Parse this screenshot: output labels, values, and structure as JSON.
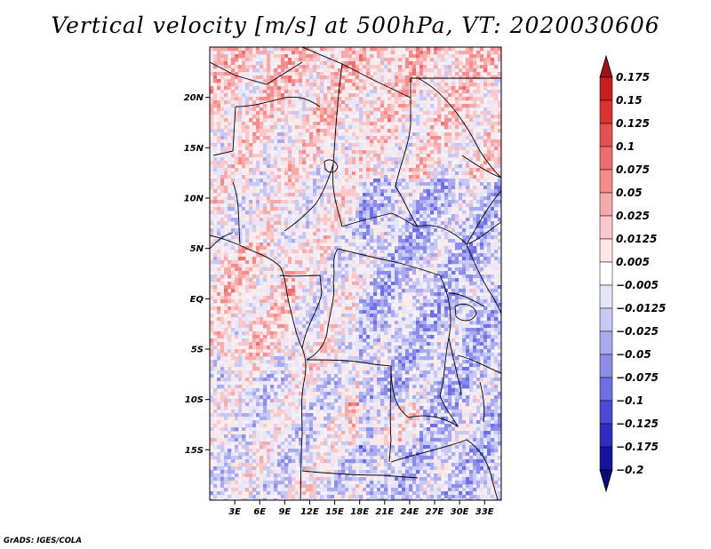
{
  "title": "Vertical velocity [m/s] at 500hPa, VT: 2020030606",
  "credit": "GrADS: IGES/COLA",
  "map": {
    "lat_labels": [
      "20N",
      "15N",
      "10N",
      "5N",
      "EQ",
      "5S",
      "10S",
      "15S"
    ],
    "lat_values": [
      20,
      15,
      10,
      5,
      0,
      -5,
      -10,
      -15
    ],
    "lon_labels": [
      "3E",
      "6E",
      "9E",
      "12E",
      "15E",
      "18E",
      "21E",
      "24E",
      "27E",
      "30E",
      "33E"
    ],
    "lon_values": [
      3,
      6,
      9,
      12,
      15,
      18,
      21,
      24,
      27,
      30,
      33
    ],
    "lon_range": [
      0,
      35
    ],
    "lat_range": [
      -20,
      25
    ]
  },
  "colorbar": {
    "labels": [
      "0.175",
      "0.15",
      "0.125",
      "0.1",
      "0.075",
      "0.05",
      "0.025",
      "0.0125",
      "0.005",
      "−0.005",
      "−0.0125",
      "−0.025",
      "−0.05",
      "−0.075",
      "−0.1",
      "−0.125",
      "−0.175",
      "−0.2"
    ],
    "colors": [
      "#a50f15",
      "#c81e1e",
      "#dc3232",
      "#e65050",
      "#ee6e6e",
      "#f48c8c",
      "#f7aaaa",
      "#fac8c8",
      "#fde6e6",
      "#ffffff",
      "#e6e6fa",
      "#c8c8f5",
      "#aaaaf0",
      "#8c8ceb",
      "#6e6ee6",
      "#4b4bd7",
      "#2d2dc3",
      "#1414a0",
      "#0a0a78"
    ]
  }
}
